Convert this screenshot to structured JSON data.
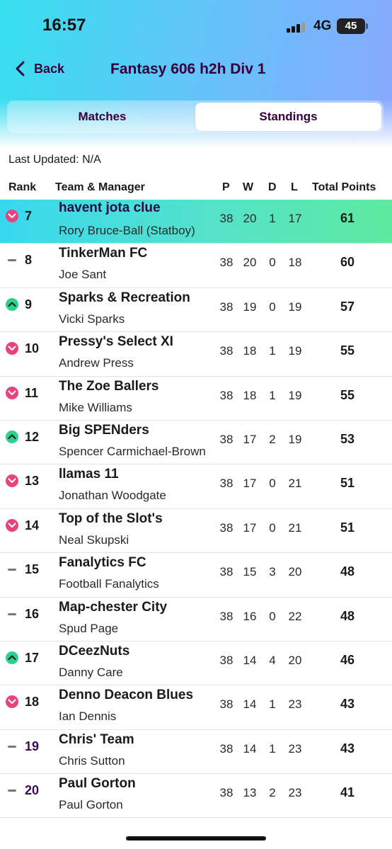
{
  "status": {
    "time": "16:57",
    "network": "4G",
    "battery": "45"
  },
  "nav": {
    "back_label": "Back",
    "title": "Fantasy 606 h2h Div 1"
  },
  "tabs": [
    {
      "label": "Matches",
      "active": false
    },
    {
      "label": "Standings",
      "active": true
    }
  ],
  "last_updated": "Last Updated: N/A",
  "columns": {
    "rank": "Rank",
    "team": "Team & Manager",
    "p": "P",
    "w": "W",
    "d": "D",
    "l": "L",
    "points": "Total Points"
  },
  "accent_colors": {
    "title": "#36003c",
    "down": "#e8437e",
    "up": "#2ed08d",
    "highlight_start": "#38d8f0",
    "highlight_end": "#5eea9e"
  },
  "standings": [
    {
      "movement": "down",
      "rank": "7",
      "team": "havent jota clue",
      "manager": "Rory Bruce-Ball (Statboy)",
      "p": "38",
      "w": "20",
      "d": "1",
      "l": "17",
      "points": "61",
      "highlight": true
    },
    {
      "movement": "same",
      "rank": "8",
      "team": "TinkerMan FC",
      "manager": "Joe Sant",
      "p": "38",
      "w": "20",
      "d": "0",
      "l": "18",
      "points": "60"
    },
    {
      "movement": "up",
      "rank": "9",
      "team": "Sparks & Recreation",
      "manager": "Vicki Sparks",
      "p": "38",
      "w": "19",
      "d": "0",
      "l": "19",
      "points": "57"
    },
    {
      "movement": "down",
      "rank": "10",
      "team": "Pressy's Select XI",
      "manager": "Andrew Press",
      "p": "38",
      "w": "18",
      "d": "1",
      "l": "19",
      "points": "55"
    },
    {
      "movement": "down",
      "rank": "11",
      "team": "The Zoe Ballers",
      "manager": "Mike Williams",
      "p": "38",
      "w": "18",
      "d": "1",
      "l": "19",
      "points": "55"
    },
    {
      "movement": "up",
      "rank": "12",
      "team": "Big SPENders",
      "manager": "Spencer Carmichael-Brown",
      "p": "38",
      "w": "17",
      "d": "2",
      "l": "19",
      "points": "53"
    },
    {
      "movement": "down",
      "rank": "13",
      "team": "llamas 11",
      "manager": "Jonathan Woodgate",
      "p": "38",
      "w": "17",
      "d": "0",
      "l": "21",
      "points": "51"
    },
    {
      "movement": "down",
      "rank": "14",
      "team": "Top of the Slot's",
      "manager": "Neal Skupski",
      "p": "38",
      "w": "17",
      "d": "0",
      "l": "21",
      "points": "51"
    },
    {
      "movement": "same",
      "rank": "15",
      "team": "Fanalytics FC",
      "manager": "Football Fanalytics",
      "p": "38",
      "w": "15",
      "d": "3",
      "l": "20",
      "points": "48"
    },
    {
      "movement": "same",
      "rank": "16",
      "team": "Map-chester City",
      "manager": "Spud Page",
      "p": "38",
      "w": "16",
      "d": "0",
      "l": "22",
      "points": "48"
    },
    {
      "movement": "up",
      "rank": "17",
      "team": "DCeezNuts",
      "manager": "Danny Care",
      "p": "38",
      "w": "14",
      "d": "4",
      "l": "20",
      "points": "46"
    },
    {
      "movement": "down",
      "rank": "18",
      "team": "Denno Deacon Blues",
      "manager": "Ian Dennis",
      "p": "38",
      "w": "14",
      "d": "1",
      "l": "23",
      "points": "43"
    },
    {
      "movement": "same",
      "rank": "19",
      "team": "Chris' Team",
      "manager": "Chris Sutton",
      "p": "38",
      "w": "14",
      "d": "1",
      "l": "23",
      "points": "43",
      "rank_purple": true
    },
    {
      "movement": "same",
      "rank": "20",
      "team": "Paul Gorton",
      "manager": "Paul Gorton",
      "p": "38",
      "w": "13",
      "d": "2",
      "l": "23",
      "points": "41",
      "rank_purple": true
    }
  ]
}
